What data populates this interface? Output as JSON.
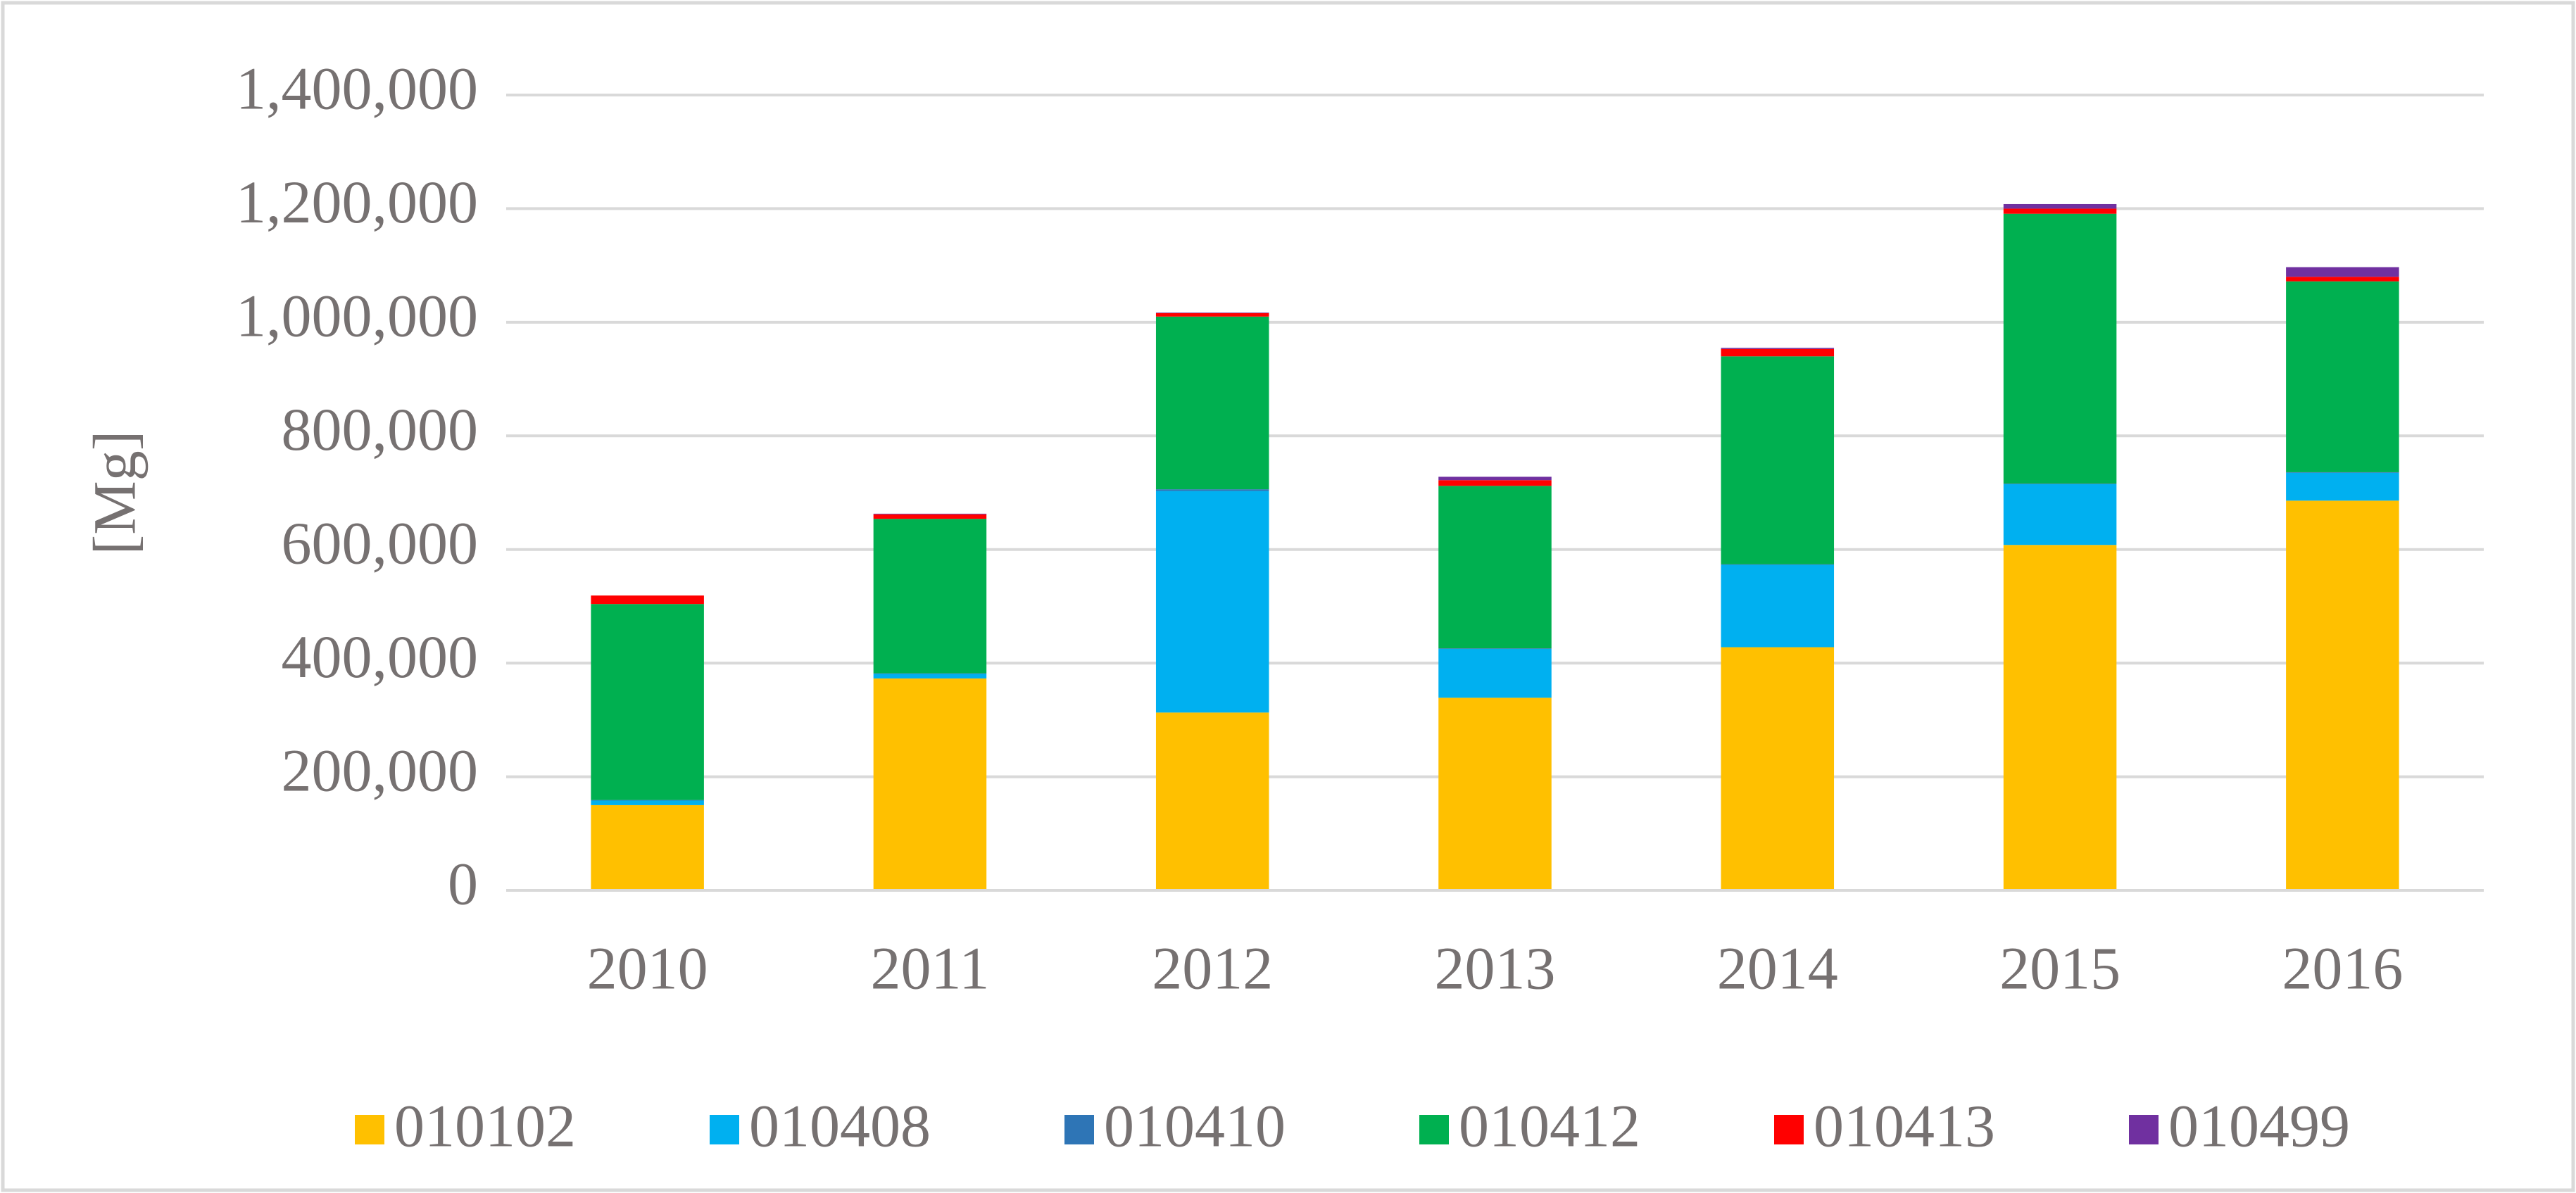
{
  "chart_data": {
    "type": "stacked_bar",
    "y_label": "[Mg]",
    "categories": [
      "2010",
      "2011",
      "2012",
      "2013",
      "2014",
      "2015",
      "2016"
    ],
    "series": [
      {
        "name": "010102",
        "color": "#ffc000",
        "values": [
          150000,
          373000,
          313000,
          339000,
          428000,
          608000,
          686000
        ]
      },
      {
        "name": "010408",
        "color": "#00b0f0",
        "values": [
          8000,
          8000,
          390000,
          86000,
          145000,
          107000,
          49000
        ]
      },
      {
        "name": "010410",
        "color": "#2e75b6",
        "values": [
          1000,
          1000,
          3000,
          1000,
          1000,
          1000,
          1000
        ]
      },
      {
        "name": "010412",
        "color": "#00b050",
        "values": [
          345000,
          272000,
          304000,
          286000,
          366000,
          475000,
          336000
        ]
      },
      {
        "name": "010413",
        "color": "#ff0000",
        "values": [
          15000,
          8000,
          6000,
          10000,
          13000,
          9000,
          8000
        ]
      },
      {
        "name": "010499",
        "color": "#7030a0",
        "values": [
          0,
          1000,
          1000,
          6000,
          2000,
          8000,
          17000
        ]
      }
    ],
    "ylim": [
      0,
      1400000
    ],
    "yticks": [
      0,
      {
        "value": 200000,
        "label": "200,000"
      },
      {
        "value": 400000,
        "label": "400,000"
      },
      {
        "value": 600000,
        "label": "600,000"
      },
      {
        "value": 800000,
        "label": "800,000"
      },
      {
        "value": 1000000,
        "label": "1,000,000"
      },
      {
        "value": 1200000,
        "label": "1,200,000"
      },
      {
        "value": 1400000,
        "label": "1,400,000"
      }
    ],
    "grid": true,
    "legend": "bottom"
  }
}
